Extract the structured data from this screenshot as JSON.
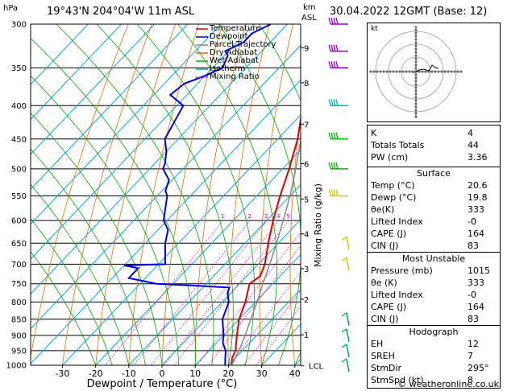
{
  "header": {
    "location": "19°43'N  204°04'W  11m  ASL",
    "datetime": "30.04.2022  12GMT  (Base: 12)",
    "hpa_label": "hPa",
    "km_label": "km",
    "asl_label": "ASL",
    "footer": "© weatheronline.co.uk"
  },
  "legend": [
    {
      "label": "Temperature",
      "color": "#e00000",
      "dash": ""
    },
    {
      "label": "Dewpoint",
      "color": "#0000dd",
      "dash": ""
    },
    {
      "label": "Parcel Trajectory",
      "color": "#888888",
      "dash": ""
    },
    {
      "label": "Dry Adiabat",
      "color": "#e07000",
      "dash": ""
    },
    {
      "label": "Wet Adiabat",
      "color": "#00aa00",
      "dash": ""
    },
    {
      "label": "Isotherm",
      "color": "#00aadd",
      "dash": ""
    },
    {
      "label": "Mixing Ratio",
      "color": "#cc00cc",
      "dash": "2,2"
    }
  ],
  "chart_data": {
    "type": "line",
    "title": "",
    "xlabel": "Dewpoint / Temperature (°C)",
    "ylabel_right": "Mixing Ratio (g/kg)",
    "x_ticks": [
      -30,
      -20,
      -10,
      0,
      10,
      20,
      30,
      40
    ],
    "pressure_levels": [
      300,
      350,
      400,
      450,
      500,
      550,
      600,
      650,
      700,
      750,
      800,
      850,
      900,
      950,
      1000
    ],
    "km_ticks": [
      {
        "label": "9",
        "p": 326
      },
      {
        "label": "8",
        "p": 369
      },
      {
        "label": "7",
        "p": 427
      },
      {
        "label": "6",
        "p": 491
      },
      {
        "label": "5",
        "p": 556
      },
      {
        "label": "4",
        "p": 629
      },
      {
        "label": "3",
        "p": 711
      },
      {
        "label": "2",
        "p": 792
      },
      {
        "label": "1",
        "p": 898
      },
      {
        "label": "LCL",
        "p": 1002
      }
    ],
    "mixing_ratio_labels": [
      "1",
      "2",
      "3",
      "4",
      "5",
      "8",
      "10",
      "15",
      "20",
      "25"
    ],
    "series": [
      {
        "name": "Temperature",
        "color": "#e00000",
        "points": [
          [
            1000,
            21
          ],
          [
            975,
            19
          ],
          [
            950,
            18
          ],
          [
            925,
            16
          ],
          [
            900,
            14
          ],
          [
            850,
            10
          ],
          [
            800,
            7
          ],
          [
            775,
            5
          ],
          [
            750,
            3
          ],
          [
            730,
            4
          ],
          [
            700,
            2
          ],
          [
            650,
            -3
          ],
          [
            600,
            -8
          ],
          [
            550,
            -13
          ],
          [
            500,
            -18
          ],
          [
            450,
            -24
          ],
          [
            400,
            -32
          ],
          [
            375,
            -37
          ],
          [
            350,
            -43
          ],
          [
            325,
            -48
          ],
          [
            310,
            -52
          ],
          [
            300,
            -55
          ]
        ]
      },
      {
        "name": "Dewpoint",
        "color": "#0000dd",
        "points": [
          [
            1000,
            19
          ],
          [
            975,
            17
          ],
          [
            950,
            15
          ],
          [
            925,
            12
          ],
          [
            900,
            10
          ],
          [
            850,
            5
          ],
          [
            800,
            2
          ],
          [
            775,
            -1
          ],
          [
            760,
            -2
          ],
          [
            755,
            -13
          ],
          [
            750,
            -25
          ],
          [
            735,
            -35
          ],
          [
            710,
            -35
          ],
          [
            703,
            -40
          ],
          [
            700,
            -28
          ],
          [
            650,
            -34
          ],
          [
            620,
            -37
          ],
          [
            600,
            -41
          ],
          [
            550,
            -47
          ],
          [
            540,
            -49
          ],
          [
            520,
            -51
          ],
          [
            500,
            -56
          ],
          [
            490,
            -57
          ],
          [
            470,
            -60
          ],
          [
            450,
            -64
          ],
          [
            400,
            -68
          ],
          [
            385,
            -75
          ],
          [
            370,
            -74
          ],
          [
            360,
            -70
          ],
          [
            350,
            -67
          ],
          [
            335,
            -69
          ],
          [
            330,
            -71
          ],
          [
            320,
            -68
          ],
          [
            310,
            -68
          ],
          [
            300,
            -65
          ]
        ]
      },
      {
        "name": "Parcel Trajectory",
        "color": "#888888",
        "points": [
          [
            1000,
            21
          ],
          [
            950,
            19
          ],
          [
            900,
            16.5
          ],
          [
            850,
            13.5
          ],
          [
            800,
            10.5
          ],
          [
            750,
            7
          ],
          [
            700,
            3.5
          ],
          [
            650,
            -0.5
          ],
          [
            600,
            -5
          ],
          [
            550,
            -10
          ],
          [
            500,
            -16
          ],
          [
            450,
            -23
          ],
          [
            400,
            -31
          ],
          [
            350,
            -40
          ],
          [
            300,
            -51
          ]
        ]
      }
    ],
    "wind_barbs_p": [
      300,
      330,
      350,
      400,
      450,
      500,
      550,
      650,
      700,
      850,
      900,
      950,
      1000
    ],
    "indices": [
      {
        "label": "K",
        "value": "4"
      },
      {
        "label": "Totals Totals",
        "value": "44"
      },
      {
        "label": "PW (cm)",
        "value": "3.36"
      }
    ],
    "surface": {
      "title": "Surface",
      "rows": [
        {
          "label": "Temp (°C)",
          "value": "20.6"
        },
        {
          "label": "Dewp (°C)",
          "value": "19.8"
        },
        {
          "label": "θe(K)",
          "value": "333"
        },
        {
          "label": "Lifted Index",
          "value": "-0"
        },
        {
          "label": "CAPE (J)",
          "value": "164"
        },
        {
          "label": "CIN (J)",
          "value": "83"
        }
      ]
    },
    "most_unstable": {
      "title": "Most Unstable",
      "rows": [
        {
          "label": "Pressure (mb)",
          "value": "1015"
        },
        {
          "label": "θe (K)",
          "value": "333"
        },
        {
          "label": "Lifted Index",
          "value": "-0"
        },
        {
          "label": "CAPE (J)",
          "value": "164"
        },
        {
          "label": "CIN (J)",
          "value": "83"
        }
      ]
    },
    "hodograph": {
      "title": "Hodograph",
      "kt_label": "kt",
      "rows": [
        {
          "label": "EH",
          "value": "12"
        },
        {
          "label": "SREH",
          "value": "7"
        },
        {
          "label": "StmDir",
          "value": "295°"
        },
        {
          "label": "StmSpd (kt)",
          "value": "8"
        }
      ]
    }
  }
}
